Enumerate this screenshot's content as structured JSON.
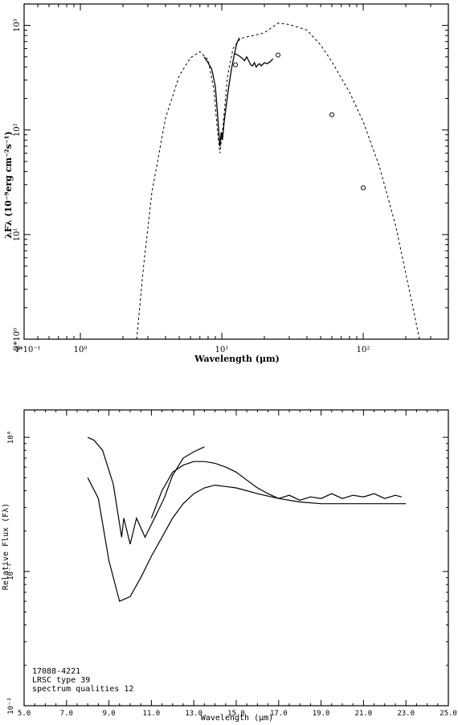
{
  "chart_data": [
    {
      "type": "line",
      "xscale": "log",
      "yscale": "log",
      "xlim": [
        0.4,
        400
      ],
      "ylim": [
        1,
        1600
      ],
      "xlabel": "Wavelength (μm)",
      "ylabel": "λFλ (10⁻⁹erg cm⁻²s⁻¹)",
      "x_tick_labels": [
        "4*10⁻¹",
        "10⁰",
        "10¹",
        "10²"
      ],
      "x_ticks": [
        0.4,
        1,
        10,
        100
      ],
      "y_tick_labels": [
        "2*10⁰",
        "10¹",
        "10²",
        "10³"
      ],
      "y_ticks": [
        1,
        10,
        100,
        1000
      ],
      "series": [
        {
          "style": "dashed",
          "x": [
            2.5,
            2.8,
            3.2,
            4.0,
            5.0,
            6.0,
            7.0,
            8.0,
            8.8,
            9.3,
            9.7,
            10.2,
            11.0,
            12.0,
            13.5,
            16.0,
            20.0,
            25.0,
            30.0,
            40.0,
            50.0,
            60.0,
            80.0,
            100.0,
            130.0,
            170.0,
            220.0,
            250.0
          ],
          "y": [
            1.0,
            5.0,
            25.0,
            130.0,
            330.0,
            490.0,
            560.0,
            470.0,
            240.0,
            100.0,
            60.0,
            110.0,
            330.0,
            600.0,
            750.0,
            790.0,
            850.0,
            1050.0,
            1020.0,
            900.0,
            650.0,
            450.0,
            230.0,
            120.0,
            45.0,
            12.0,
            2.3,
            1.0
          ]
        },
        {
          "style": "solid",
          "x": [
            7.5,
            8.0,
            8.5,
            9.0,
            9.3,
            9.5,
            9.7,
            9.9,
            10.1,
            10.4,
            10.8,
            11.2,
            11.7,
            12.3,
            12.8,
            13.3
          ],
          "y": [
            500,
            440,
            380,
            260,
            150,
            100,
            70,
            95,
            80,
            120,
            180,
            260,
            380,
            540,
            680,
            760
          ]
        },
        {
          "style": "solid",
          "x": [
            12.3,
            13.0,
            13.8,
            14.5,
            15.0,
            15.5,
            16.0,
            16.5,
            17.0,
            17.5,
            18.0,
            18.5,
            19.0,
            20.0,
            21.0,
            22.0,
            23.0
          ],
          "y": [
            540,
            520,
            490,
            460,
            500,
            460,
            420,
            410,
            440,
            400,
            420,
            430,
            410,
            440,
            430,
            450,
            480
          ]
        }
      ],
      "points": {
        "marker": "open-circle",
        "x": [
          12.5,
          25.0,
          60.0,
          100.0
        ],
        "y": [
          420,
          520,
          140,
          28
        ]
      }
    },
    {
      "type": "line",
      "yscale": "log",
      "xlim": [
        5.0,
        25.0
      ],
      "ylim": [
        0.01,
        1.6
      ],
      "xlabel": "Wavelength (μm)",
      "ylabel": "Relative Flux (Fλ)",
      "x_tick_labels": [
        "5.0",
        "7.0",
        "9.0",
        "11.0",
        "13.0",
        "15.0",
        "17.0",
        "19.0",
        "21.0",
        "23.0",
        "25.0"
      ],
      "y_tick_labels": [
        "10⁻²",
        "10⁻¹",
        "10⁰"
      ],
      "y_ticks": [
        0.01,
        0.1,
        1.0
      ],
      "annotations": [
        "17088-4221",
        "LRSC type 39",
        "spectrum qualities 12"
      ],
      "series": [
        {
          "style": "solid",
          "x": [
            8.0,
            8.3,
            8.7,
            9.2,
            9.6,
            9.7,
            10.0,
            10.3,
            10.7,
            11.2,
            11.6,
            12.0,
            12.5,
            13.0,
            13.5
          ],
          "y": [
            1.0,
            0.95,
            0.8,
            0.45,
            0.18,
            0.25,
            0.16,
            0.25,
            0.18,
            0.26,
            0.35,
            0.52,
            0.7,
            0.78,
            0.85
          ]
        },
        {
          "style": "solid",
          "x": [
            11.0,
            11.5,
            12.0,
            12.5,
            13.0,
            13.5,
            14.0,
            14.5,
            15.0,
            15.5,
            16.0,
            16.5,
            17.0,
            17.5,
            18.0,
            18.5,
            19.0,
            19.5,
            20.0,
            20.5,
            21.0,
            21.5,
            22.0,
            22.5,
            22.8
          ],
          "y": [
            0.25,
            0.4,
            0.55,
            0.62,
            0.66,
            0.66,
            0.64,
            0.6,
            0.55,
            0.48,
            0.42,
            0.38,
            0.35,
            0.37,
            0.34,
            0.36,
            0.35,
            0.38,
            0.35,
            0.37,
            0.36,
            0.38,
            0.35,
            0.37,
            0.36
          ]
        },
        {
          "style": "solid",
          "x": [
            8.0,
            8.5,
            9.0,
            9.5,
            10.0,
            10.5,
            11.0,
            11.5,
            12.0,
            12.5,
            13.0,
            13.5,
            14.0,
            14.5,
            15.0,
            15.5,
            16.0,
            17.0,
            18.0,
            19.0,
            20.0,
            21.0,
            22.0,
            23.0
          ],
          "y": [
            0.5,
            0.35,
            0.12,
            0.06,
            0.065,
            0.09,
            0.13,
            0.18,
            0.25,
            0.32,
            0.38,
            0.42,
            0.44,
            0.43,
            0.42,
            0.4,
            0.38,
            0.35,
            0.33,
            0.32,
            0.32,
            0.32,
            0.32,
            0.32
          ]
        }
      ]
    }
  ]
}
